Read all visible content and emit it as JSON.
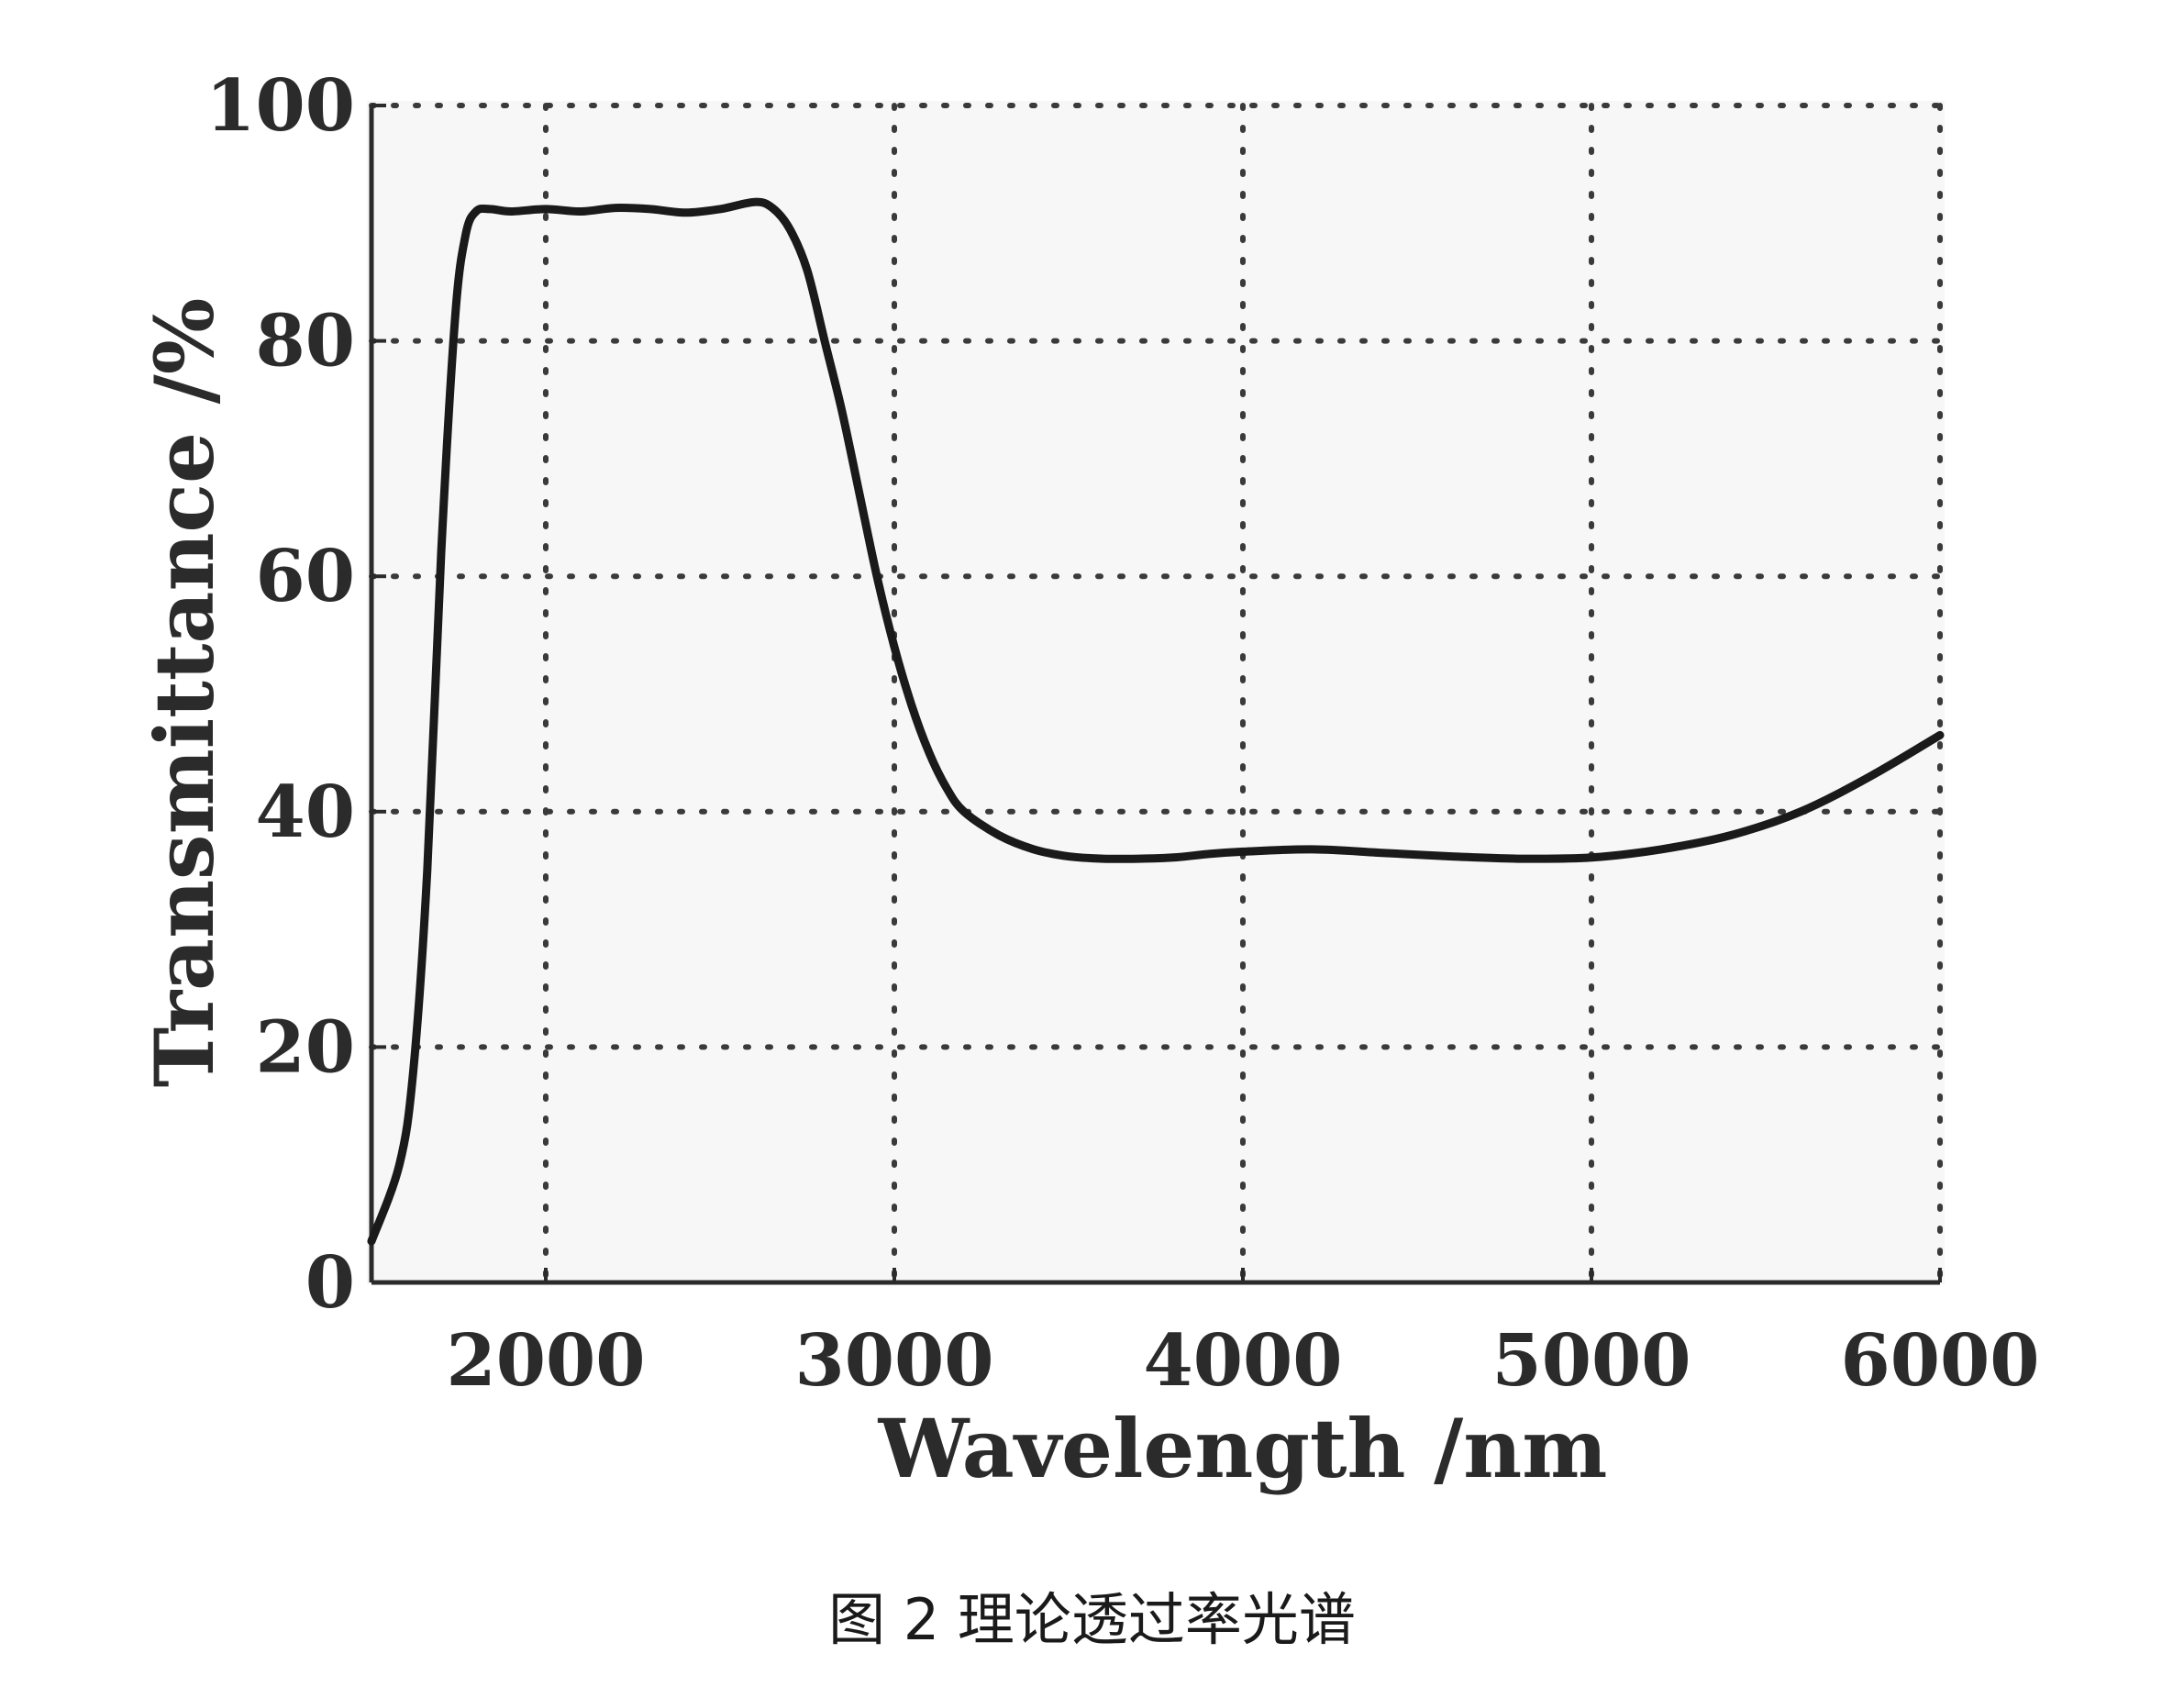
{
  "caption": "图 2  理论透过率光谱",
  "chart_data": {
    "type": "line",
    "xlabel": "Wavelength /nm",
    "ylabel": "Transmittance /%",
    "xlim": [
      1500,
      6000
    ],
    "ylim": [
      0,
      100
    ],
    "xticks": [
      "2000",
      "3000",
      "4000",
      "5000",
      "6000"
    ],
    "yticks": [
      "0",
      "20",
      "40",
      "60",
      "80",
      "100"
    ],
    "xtick_values": [
      2000,
      3000,
      4000,
      5000,
      6000
    ],
    "ytick_values": [
      0,
      20,
      40,
      60,
      80,
      100
    ],
    "grid": true,
    "series": [
      {
        "name": "",
        "x": [
          1500,
          1580,
          1620,
          1660,
          1700,
          1740,
          1770,
          1800,
          1840,
          1900,
          2000,
          2100,
          2200,
          2300,
          2400,
          2500,
          2600,
          2650,
          2700,
          2750,
          2800,
          2850,
          2900,
          2950,
          3000,
          3050,
          3100,
          3150,
          3200,
          3300,
          3400,
          3500,
          3600,
          3700,
          3800,
          3900,
          4000,
          4200,
          4400,
          4600,
          4800,
          5000,
          5200,
          5400,
          5600,
          5800,
          6000
        ],
        "y": [
          3.5,
          10,
          18,
          35,
          62,
          82,
          89,
          91,
          91.2,
          91,
          91.2,
          91,
          91.3,
          91.2,
          90.9,
          91.2,
          91.8,
          91.3,
          89.5,
          86,
          80,
          74,
          67,
          60,
          54,
          49,
          45,
          42,
          40,
          38,
          36.8,
          36.2,
          36,
          36,
          36.1,
          36.4,
          36.6,
          36.8,
          36.5,
          36.2,
          36,
          36.1,
          36.8,
          38,
          40,
          43,
          46.5
        ]
      }
    ]
  }
}
